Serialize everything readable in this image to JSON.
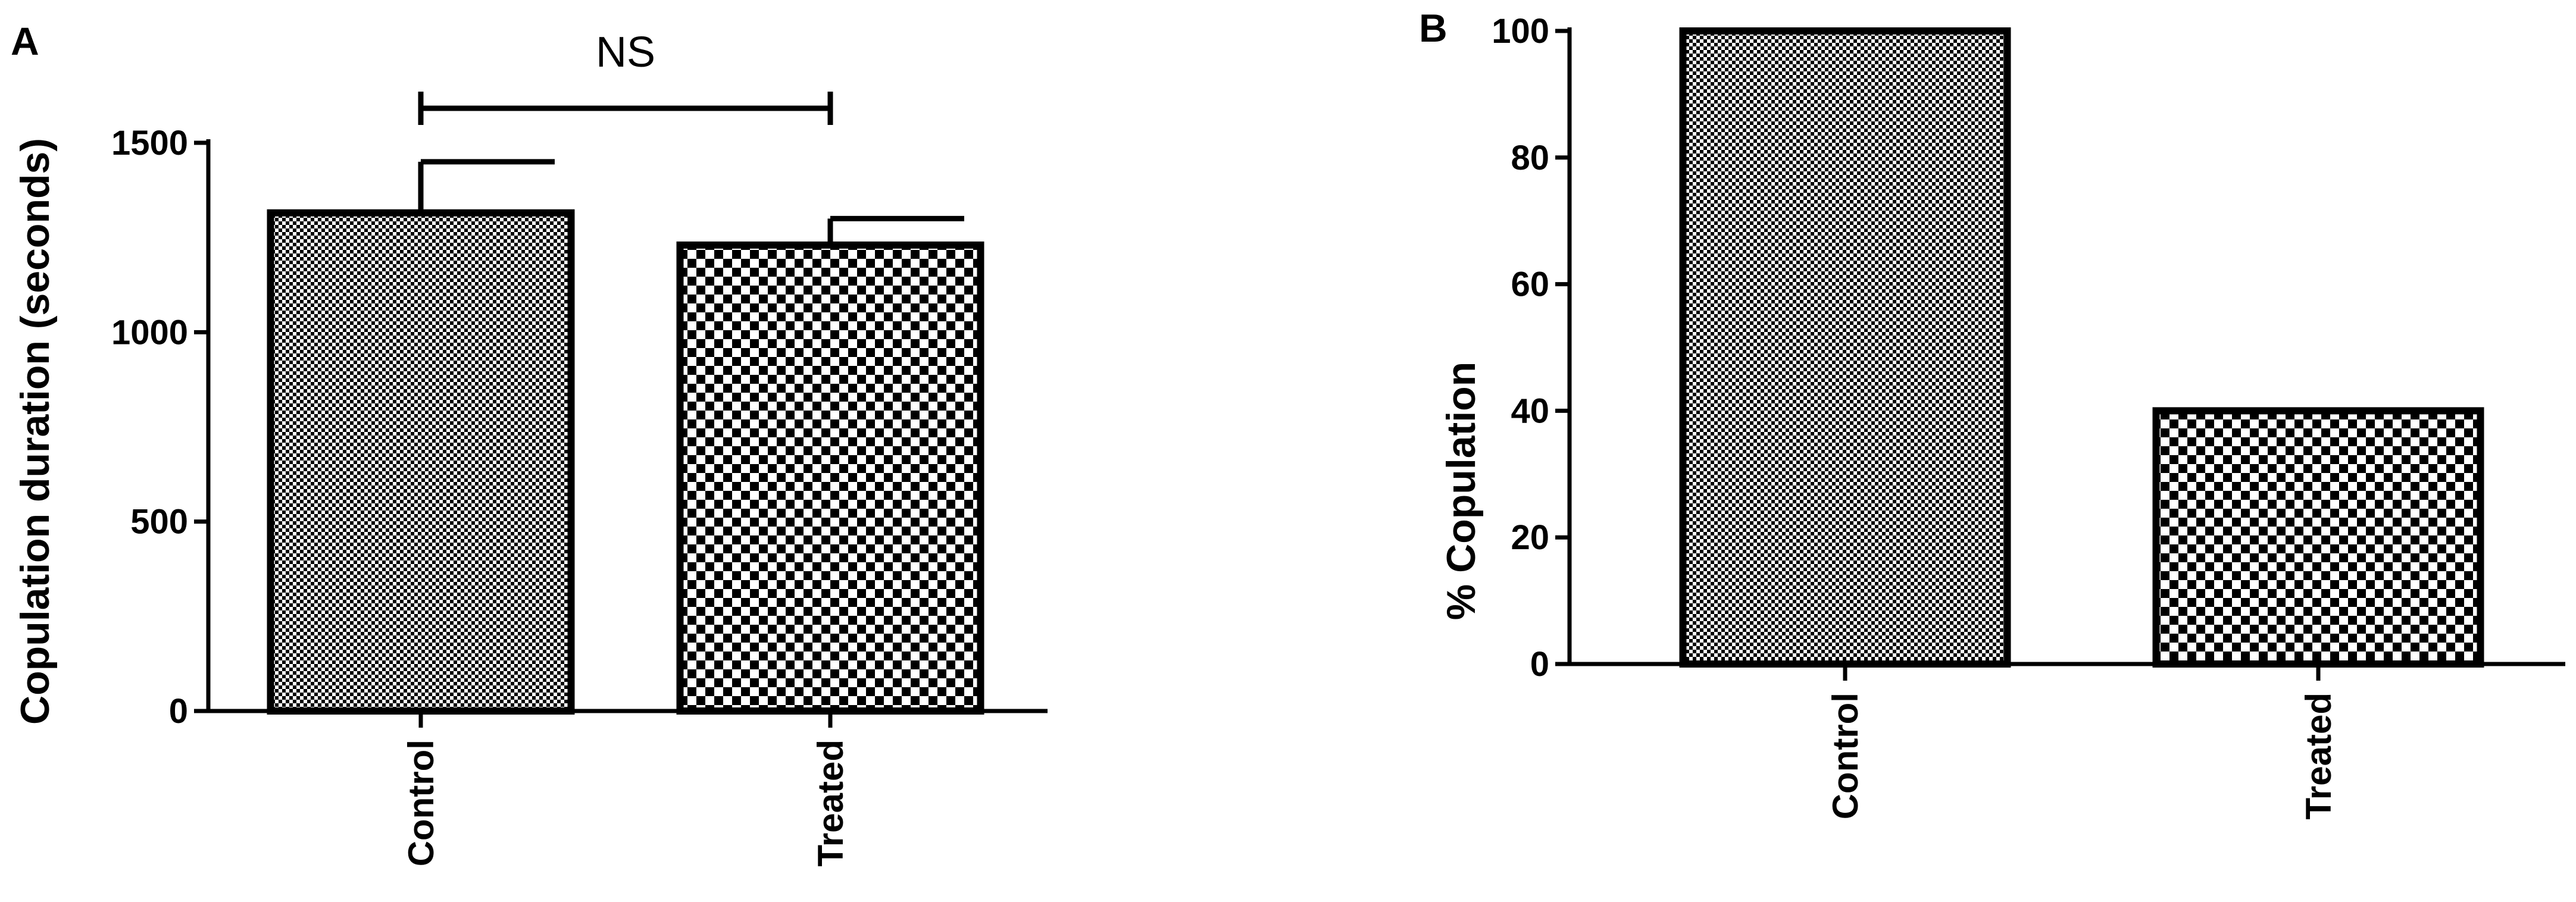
{
  "panels": [
    {
      "label": "A",
      "significance": "NS",
      "chart_data": {
        "type": "bar",
        "categories": [
          "Control",
          "Treated"
        ],
        "values": [
          1315,
          1230
        ],
        "error": [
          135,
          70
        ],
        "pattern": [
          "fine-checker",
          "coarse-checker"
        ],
        "xlabel": "",
        "ylabel": "Copulation duration (seconds)",
        "ylim": [
          0,
          1500
        ],
        "yticks": [
          "0",
          "500",
          "1000",
          "1500"
        ],
        "ytick_values": [
          0,
          500,
          1000,
          1500
        ],
        "grid": false,
        "significance_bracket": {
          "between": [
            "Control",
            "Treated"
          ],
          "text": "NS"
        }
      }
    },
    {
      "label": "B",
      "chart_data": {
        "type": "bar",
        "categories": [
          "Control",
          "Treated"
        ],
        "values": [
          100,
          40
        ],
        "pattern": [
          "fine-checker",
          "coarse-checker"
        ],
        "xlabel": "",
        "ylabel": "% Copulation",
        "ylim": [
          0,
          100
        ],
        "yticks": [
          "0",
          "20",
          "40",
          "60",
          "80",
          "100"
        ],
        "ytick_values": [
          0,
          20,
          40,
          60,
          80,
          100
        ],
        "grid": false
      }
    }
  ],
  "colors": {
    "ink": "#000000",
    "background": "#ffffff"
  }
}
